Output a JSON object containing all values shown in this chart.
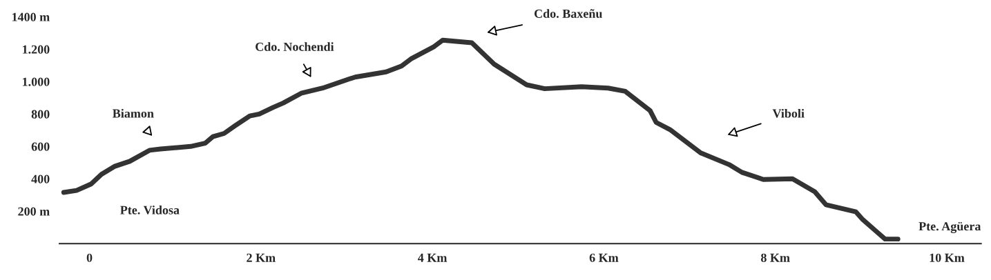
{
  "chart_data": {
    "type": "line",
    "xlim": [
      -0.35,
      10.4
    ],
    "ylim": [
      0,
      1400
    ],
    "xticks": [
      {
        "value": 0,
        "label": "0"
      },
      {
        "value": 2,
        "label": "2 Km"
      },
      {
        "value": 4,
        "label": "4 Km"
      },
      {
        "value": 6,
        "label": "6 Km"
      },
      {
        "value": 8,
        "label": "8 Km"
      },
      {
        "value": 10,
        "label": "10 Km"
      }
    ],
    "yticks": [
      {
        "value": 200,
        "label": "200 m"
      },
      {
        "value": 400,
        "label": "400"
      },
      {
        "value": 600,
        "label": "600"
      },
      {
        "value": 800,
        "label": "800"
      },
      {
        "value": 1000,
        "label": "1.000"
      },
      {
        "value": 1200,
        "label": "1.200"
      },
      {
        "value": 1400,
        "label": "1400 m"
      }
    ],
    "grid": false,
    "marker": "none",
    "line_style": "solid",
    "series": [
      {
        "color": "#333333",
        "x": [
          -0.3,
          -0.15,
          0.02,
          0.14,
          0.29,
          0.47,
          0.7,
          0.83,
          1.18,
          1.35,
          1.44,
          1.57,
          1.7,
          1.87,
          1.98,
          2.14,
          2.26,
          2.47,
          2.72,
          3.03,
          3.1,
          3.46,
          3.64,
          3.75,
          4.02,
          4.12,
          4.46,
          4.72,
          5.1,
          5.31,
          5.74,
          6.05,
          6.25,
          6.54,
          6.61,
          6.77,
          7.13,
          7.46,
          7.61,
          7.86,
          8.2,
          8.46,
          8.59,
          8.94,
          9.02,
          9.28,
          9.43
        ],
        "values": [
          316,
          328,
          368,
          428,
          476,
          508,
          576,
          584,
          600,
          620,
          660,
          680,
          728,
          788,
          800,
          840,
          868,
          928,
          960,
          1016,
          1028,
          1060,
          1096,
          1140,
          1216,
          1256,
          1240,
          1108,
          980,
          956,
          968,
          960,
          940,
          820,
          748,
          704,
          560,
          488,
          440,
          396,
          400,
          320,
          240,
          196,
          148,
          28,
          28
        ]
      }
    ],
    "annotations": [
      "Pte. Vidosa",
      "Biamon",
      "Cdo. Nochendi",
      "Cdo. Baxeñu",
      "Viboli",
      "Pte. Agüera"
    ]
  }
}
